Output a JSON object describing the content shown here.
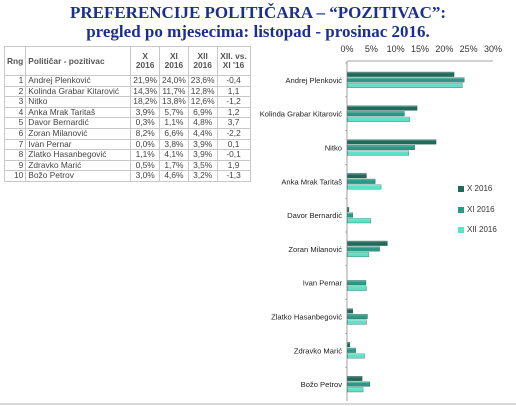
{
  "header": {
    "title_line1": "PREFERENCIJE POLITIČARA – “POZITIVAC”:",
    "title_line2": "pregled po mjesecima: listopad - prosinac 2016."
  },
  "table": {
    "headers": {
      "rank": "Rng",
      "name": "Političar - pozitivac",
      "x": "X 2016",
      "xi": "XI 2016",
      "xii": "XII 2016",
      "diff": "XII. vs. XI '16"
    },
    "rows": [
      {
        "rank": "1",
        "name": "Andrej Plenković",
        "x": "21,9%",
        "xi": "24,0%",
        "xii": "23,6%",
        "diff": "-0,4"
      },
      {
        "rank": "2",
        "name": "Kolinda Grabar Kitarović",
        "x": "14,3%",
        "xi": "11,7%",
        "xii": "12,8%",
        "diff": "1,1"
      },
      {
        "rank": "3",
        "name": "Nitko",
        "x": "18,2%",
        "xi": "13,8%",
        "xii": "12,6%",
        "diff": "-1,2"
      },
      {
        "rank": "4",
        "name": "Anka Mrak Taritaš",
        "x": "3,9%",
        "xi": "5,7%",
        "xii": "6,9%",
        "diff": "1,2"
      },
      {
        "rank": "5",
        "name": "Davor Bernardić",
        "x": "0,3%",
        "xi": "1,1%",
        "xii": "4,8%",
        "diff": "3,7"
      },
      {
        "rank": "6",
        "name": "Zoran Milanović",
        "x": "8,2%",
        "xi": "6,6%",
        "xii": "4,4%",
        "diff": "-2,2"
      },
      {
        "rank": "7",
        "name": "Ivan Pernar",
        "x": "0,0%",
        "xi": "3,8%",
        "xii": "3,9%",
        "diff": "0,1"
      },
      {
        "rank": "8",
        "name": "Zlatko Hasanbegović",
        "x": "1,1%",
        "xi": "4,1%",
        "xii": "3,9%",
        "diff": "-0,1"
      },
      {
        "rank": "9",
        "name": "Zdravko Marić",
        "x": "0,5%",
        "xi": "1,7%",
        "xii": "3,5%",
        "diff": "1,9"
      },
      {
        "rank": "10",
        "name": "Božo Petrov",
        "x": "3,0%",
        "xi": "4,6%",
        "xii": "3,2%",
        "diff": "-1,3"
      }
    ]
  },
  "colors": {
    "x": "#1e6b5a",
    "xi": "#2a9a86",
    "xii": "#5ee0c6",
    "title": "#1b2f8f"
  },
  "chart_data": {
    "type": "bar",
    "orientation": "horizontal",
    "categories": [
      "Andrej Plenković",
      "Kolinda Grabar Kitarović",
      "Nitko",
      "Anka Mrak Taritaš",
      "Davor Bernardić",
      "Zoran Milanović",
      "Ivan Pernar",
      "Zlatko Hasanbegović",
      "Zdravko Marić",
      "Božo Petrov"
    ],
    "series": [
      {
        "name": "X 2016",
        "values": [
          21.9,
          14.3,
          18.2,
          3.9,
          0.3,
          8.2,
          0.0,
          1.1,
          0.5,
          3.0
        ]
      },
      {
        "name": "XI 2016",
        "values": [
          24.0,
          11.7,
          13.8,
          5.7,
          1.1,
          6.6,
          3.8,
          4.1,
          1.7,
          4.6
        ]
      },
      {
        "name": "XII 2016",
        "values": [
          23.6,
          12.8,
          12.6,
          6.9,
          4.8,
          4.4,
          3.9,
          3.9,
          3.5,
          3.2
        ]
      }
    ],
    "x_ticks": [
      "0%",
      "5%",
      "10%",
      "15%",
      "20%",
      "25%",
      "30%"
    ],
    "xlim": [
      0,
      30
    ],
    "grid": false,
    "legend_position": "right"
  }
}
